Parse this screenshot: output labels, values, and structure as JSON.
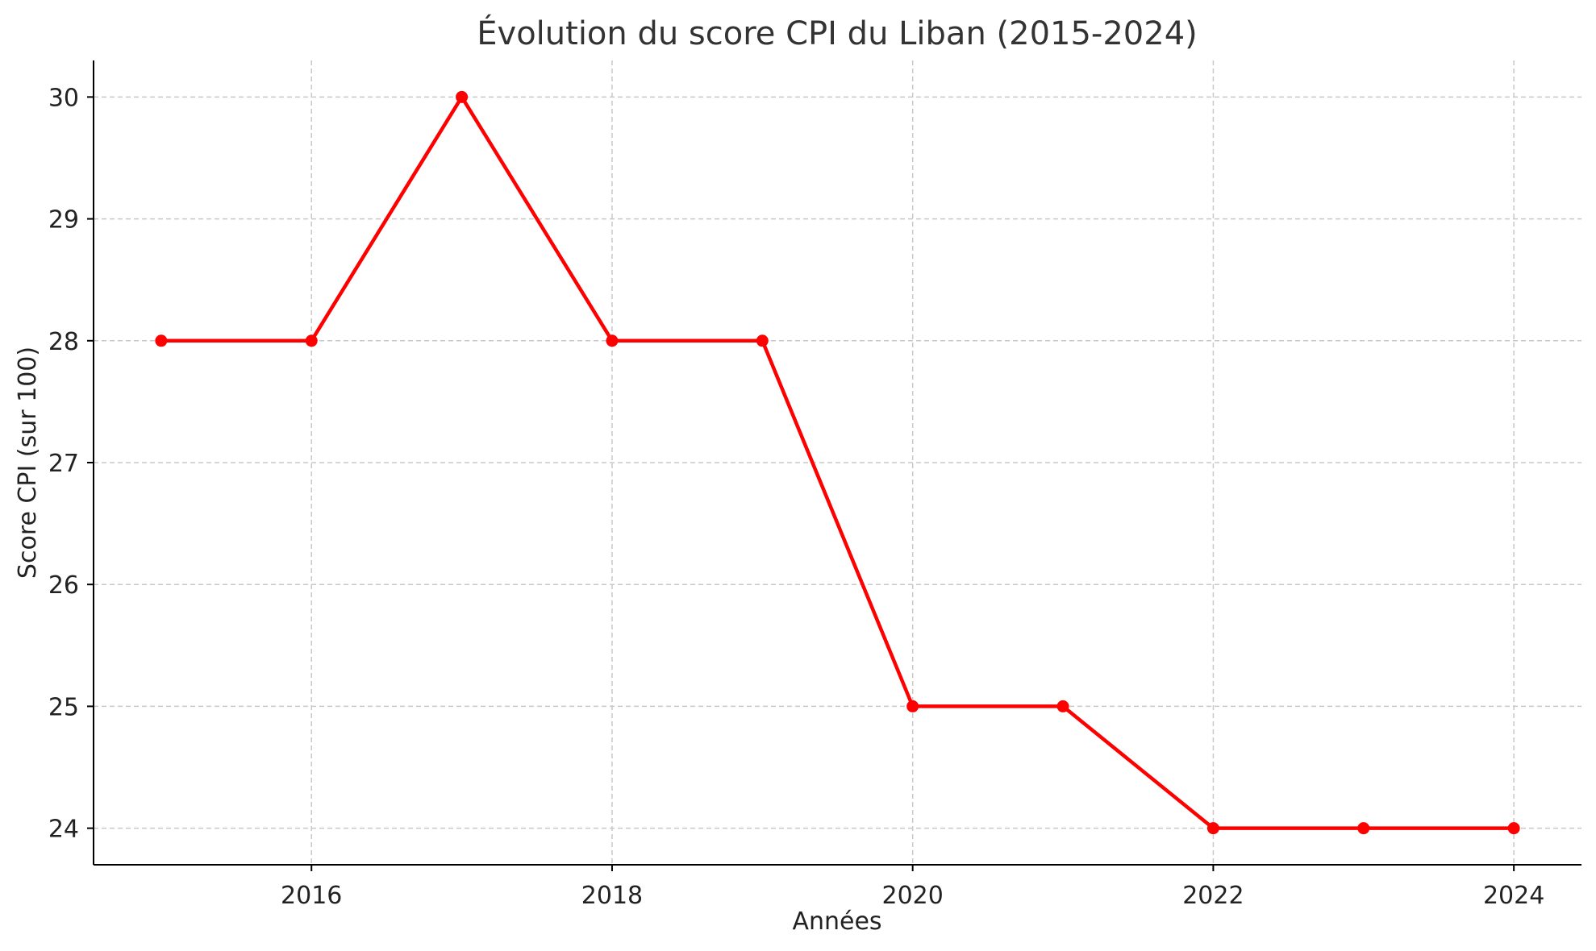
{
  "chart_data": {
    "type": "line",
    "title": "Évolution du score CPI du Liban (2015-2024)",
    "xlabel": "Années",
    "ylabel": "Score CPI (sur 100)",
    "x": [
      2015,
      2016,
      2017,
      2018,
      2019,
      2020,
      2021,
      2022,
      2023,
      2024
    ],
    "series": [
      {
        "values": [
          28,
          28,
          30,
          28,
          28,
          25,
          25,
          24,
          24,
          24
        ],
        "color": "#ff0000",
        "marker": "circle"
      }
    ],
    "xticks": [
      2016,
      2018,
      2020,
      2022,
      2024
    ],
    "xtick_labels": [
      "2016",
      "2018",
      "2020",
      "2022",
      "2024"
    ],
    "yticks": [
      24,
      25,
      26,
      27,
      28,
      29,
      30
    ],
    "ytick_labels": [
      "24",
      "25",
      "26",
      "27",
      "28",
      "29",
      "30"
    ],
    "xlim": [
      2014.55,
      2024.45
    ],
    "ylim": [
      23.7,
      30.3
    ],
    "grid": true,
    "legend": false
  }
}
